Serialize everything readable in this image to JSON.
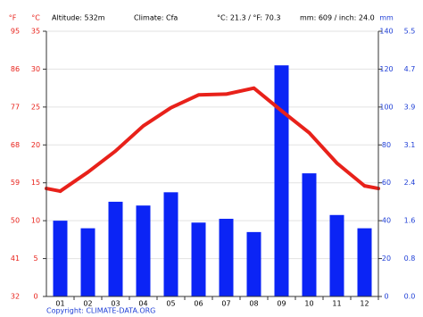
{
  "chart_data": {
    "type": "combo",
    "annotations": [
      "Altitude: 532m",
      "Climate: Cfa",
      "°C: 21.3 / °F: 70.3",
      "mm: 609 / inch: 24.0"
    ],
    "ylabel": "°C",
    "y3label": "°F",
    "y2label": "mm",
    "categories": [
      "01",
      "02",
      "03",
      "04",
      "05",
      "06",
      "07",
      "08",
      "09",
      "10",
      "11",
      "12"
    ],
    "series": [
      {
        "type": "bar",
        "axis": "y2",
        "color": "#0b24f5",
        "values": [
          40,
          36,
          50,
          48,
          55,
          39,
          41,
          34,
          122,
          65,
          43,
          36
        ]
      },
      {
        "type": "line",
        "color": "#e8211a",
        "values": [
          13.9,
          16.4,
          19.2,
          22.5,
          24.9,
          26.6,
          26.7,
          27.5,
          24.5,
          21.6,
          17.6,
          14.6
        ]
      }
    ],
    "ylim": [
      0,
      35
    ],
    "yticks": [
      0,
      5,
      10,
      15,
      20,
      25,
      30,
      35
    ],
    "y3lim": [
      32,
      95
    ],
    "y3ticks": [
      32,
      41,
      50,
      59,
      68,
      77,
      86,
      95
    ],
    "y2lim": [
      0,
      140
    ],
    "y2ticks": [
      0,
      20,
      40,
      60,
      80,
      100,
      120,
      140
    ],
    "y4lim": [
      0,
      5.5118
    ],
    "y4ticks": [
      {
        "value": 0,
        "label": "0.0"
      },
      {
        "value": 0.7874,
        "label": "0.8"
      },
      {
        "value": 1.5748,
        "label": "1.6"
      },
      {
        "value": 2.3622,
        "label": "2.4"
      },
      {
        "value": 3.1496,
        "label": "3.1"
      },
      {
        "value": 3.937,
        "label": "3.9"
      },
      {
        "value": 4.7244,
        "label": "4.7"
      },
      {
        "value": 5.5118,
        "label": "5.5"
      }
    ],
    "grid": true,
    "source": "Copyright: CLIMATE-DATA.ORG"
  }
}
